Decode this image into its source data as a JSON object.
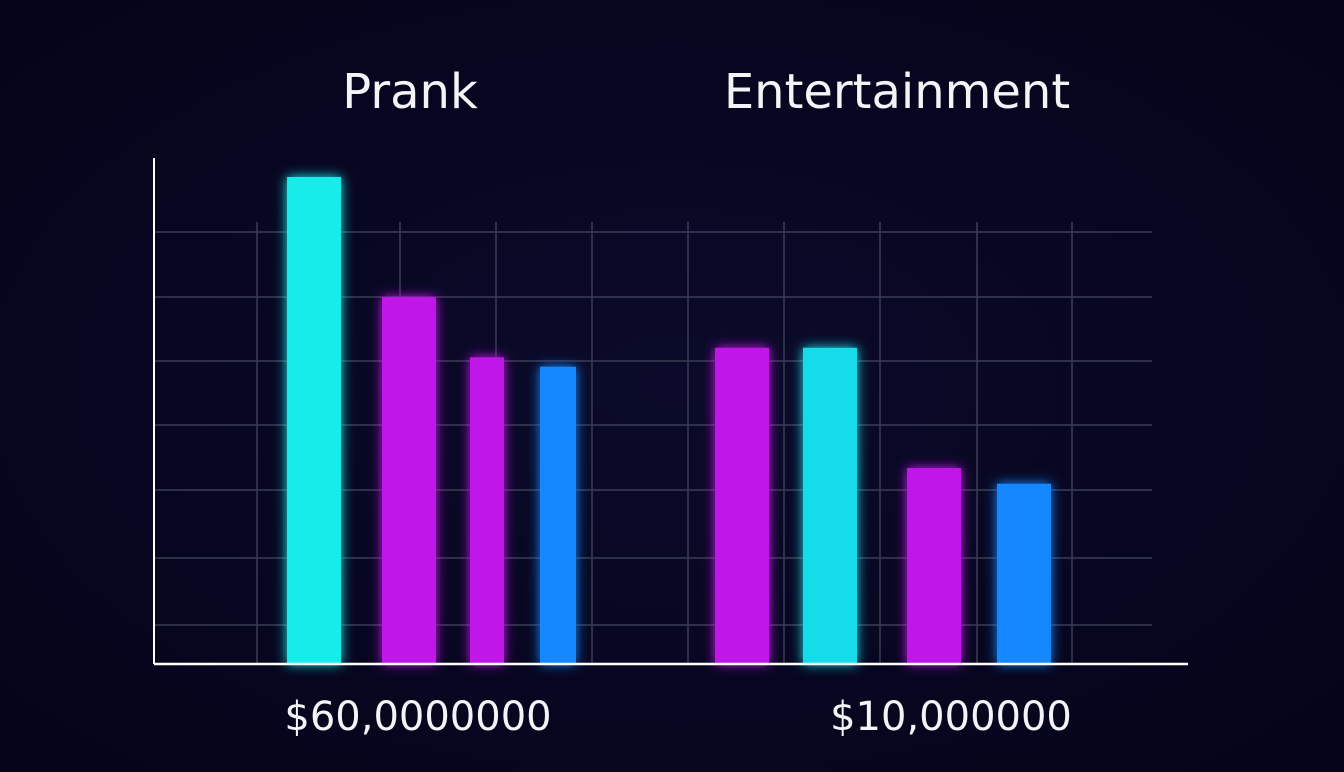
{
  "chart_data": {
    "type": "bar",
    "groups": [
      {
        "title": "Prank",
        "caption": "$60,0000000",
        "bars": [
          {
            "value": 7.7,
            "color": "#14ecea"
          },
          {
            "value": 5.8,
            "color": "#c014e8"
          },
          {
            "value": 4.85,
            "color": "#c014e8"
          },
          {
            "value": 4.7,
            "color": "#1688ff"
          }
        ]
      },
      {
        "title": "Entertainment",
        "caption": "$10,000000",
        "bars": [
          {
            "value": 5.0,
            "color": "#c014e8"
          },
          {
            "value": 5.0,
            "color": "#14dcea"
          },
          {
            "value": 3.1,
            "color": "#c014e8"
          },
          {
            "value": 2.85,
            "color": "#1688ff"
          }
        ]
      }
    ],
    "ylim": [
      0,
      8
    ],
    "grid": true,
    "axis_color": "#ffffff",
    "grid_color": "#3a3d55"
  }
}
